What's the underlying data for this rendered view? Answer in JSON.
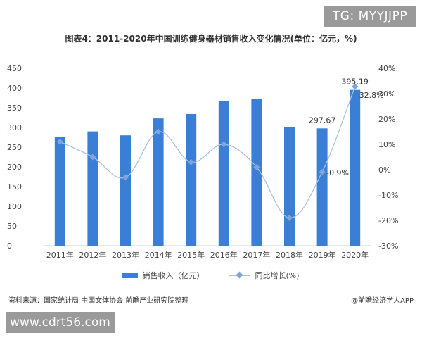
{
  "badges": {
    "top_right": "TG: MYYJJPP",
    "bottom_left": "www.cdrt56.com"
  },
  "chart_data": {
    "type": "bar",
    "title": "图表4：2011-2020年中国训练健身器材销售收入变化情况(单位：亿元，%)",
    "categories": [
      "2011年",
      "2012年",
      "2013年",
      "2014年",
      "2015年",
      "2016年",
      "2017年",
      "2018年",
      "2019年",
      "2020年"
    ],
    "series": [
      {
        "name": "销售收入（亿元）",
        "type": "bar",
        "axis": "left",
        "values": [
          275,
          290,
          280,
          323,
          334,
          367,
          372,
          300,
          297.67,
          395.19
        ]
      },
      {
        "name": "同比增长(%)",
        "type": "line",
        "axis": "right",
        "values": [
          11,
          5,
          -3,
          15,
          3,
          10,
          1,
          -19,
          -0.9,
          32.8
        ]
      }
    ],
    "y_left": {
      "min": 0,
      "max": 450,
      "ticks": [
        "0",
        "50",
        "100",
        "150",
        "200",
        "250",
        "300",
        "350",
        "400",
        "450"
      ]
    },
    "y_right": {
      "min": -30,
      "max": 40,
      "ticks": [
        "-30%",
        "-20%",
        "-10%",
        "0%",
        "10%",
        "20%",
        "30%",
        "40%"
      ]
    },
    "data_labels": [
      {
        "series": 0,
        "index": 8,
        "text": "297.67"
      },
      {
        "series": 0,
        "index": 9,
        "text": "395.19"
      },
      {
        "series": 1,
        "index": 8,
        "text": "-0.9%"
      },
      {
        "series": 1,
        "index": 9,
        "text": "32.8%"
      }
    ],
    "colors": {
      "bar": "#3a7fd5",
      "line": "#a9c2e6",
      "marker": "#7fa5dd"
    },
    "legend_position": "bottom-center",
    "grid": false
  },
  "footer": {
    "source": "资料来源：国家统计局 中国文体协会 前瞻产业研究院整理",
    "brand": "@前瞻经济学人APP"
  }
}
